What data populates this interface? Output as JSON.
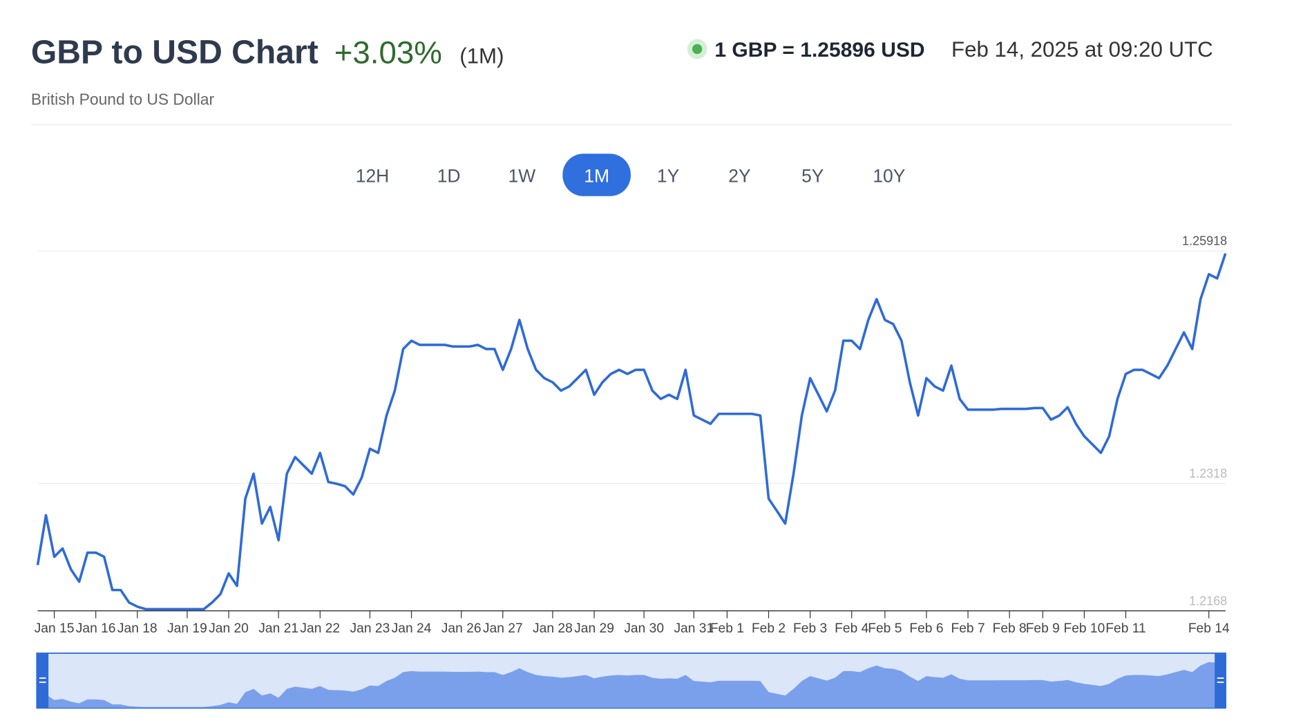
{
  "header": {
    "title": "GBP to USD Chart",
    "change": "+3.03%",
    "period": "(1M)",
    "rate": "1 GBP = 1.25896 USD",
    "timestamp": "Feb 14, 2025 at 09:20 UTC",
    "subtitle": "British Pound to US Dollar"
  },
  "range_buttons": {
    "labels": [
      "12H",
      "1D",
      "1W",
      "1M",
      "1Y",
      "2Y",
      "5Y",
      "10Y"
    ],
    "active": "1M"
  },
  "chart_data": {
    "type": "line",
    "color": "#2f6bd6",
    "ylim": [
      1.2168,
      1.25918
    ],
    "yticks": [
      1.2168,
      1.2318,
      1.25918
    ],
    "grid": true,
    "categories": [
      null,
      null,
      "Jan 15",
      null,
      null,
      null,
      null,
      "Jan 16",
      null,
      null,
      null,
      null,
      "Jan 18",
      null,
      null,
      null,
      null,
      null,
      "Jan 19",
      null,
      null,
      null,
      null,
      "Jan 20",
      null,
      null,
      null,
      null,
      null,
      "Jan 21",
      null,
      null,
      null,
      null,
      "Jan 22",
      null,
      null,
      null,
      null,
      null,
      "Jan 23",
      null,
      null,
      null,
      null,
      "Jan 24",
      null,
      null,
      null,
      null,
      null,
      "Jan 26",
      null,
      null,
      null,
      null,
      "Jan 27",
      null,
      null,
      null,
      null,
      null,
      "Jan 28",
      null,
      null,
      null,
      null,
      "Jan 29",
      null,
      null,
      null,
      null,
      null,
      "Jan 30",
      null,
      null,
      null,
      null,
      null,
      "Jan 31",
      null,
      null,
      null,
      "Feb 1",
      null,
      null,
      null,
      null,
      "Feb 2",
      null,
      null,
      null,
      null,
      "Feb 3",
      null,
      null,
      null,
      null,
      "Feb 4",
      null,
      null,
      null,
      "Feb 5",
      null,
      null,
      null,
      null,
      "Feb 6",
      null,
      null,
      null,
      null,
      "Feb 7",
      null,
      null,
      null,
      null,
      "Feb 8",
      null,
      null,
      null,
      "Feb 9",
      null,
      null,
      null,
      null,
      "Feb 10",
      null,
      null,
      null,
      null,
      "Feb 11",
      null,
      null,
      null,
      null,
      null,
      null,
      null,
      null,
      null,
      "Feb 14",
      null,
      null
    ],
    "values": [
      1.22218,
      1.22806,
      1.22316,
      1.22414,
      1.22169,
      1.22023,
      1.22365,
      1.22365,
      1.22316,
      1.21925,
      1.21925,
      1.21778,
      1.21729,
      1.217,
      1.217,
      1.217,
      1.217,
      1.217,
      1.217,
      1.217,
      1.217,
      1.21778,
      1.21876,
      1.2212,
      1.21974,
      1.23001,
      1.23295,
      1.22708,
      1.22903,
      1.22512,
      1.23295,
      1.23491,
      1.23393,
      1.23295,
      1.2354,
      1.23197,
      1.23177,
      1.23148,
      1.2305,
      1.23246,
      1.23589,
      1.2354,
      1.2398,
      1.24274,
      1.24763,
      1.24861,
      1.24812,
      1.24812,
      1.24812,
      1.24812,
      1.24792,
      1.24792,
      1.24792,
      1.24812,
      1.24763,
      1.24763,
      1.24518,
      1.24763,
      1.25106,
      1.24763,
      1.24518,
      1.2442,
      1.24372,
      1.24274,
      1.24323,
      1.2442,
      1.24518,
      1.24225,
      1.24372,
      1.24469,
      1.24518,
      1.24469,
      1.24518,
      1.24518,
      1.24274,
      1.24176,
      1.24225,
      1.24176,
      1.24518,
      1.2398,
      1.23931,
      1.23882,
      1.24,
      1.24,
      1.24,
      1.24,
      1.24,
      1.2398,
      1.23001,
      1.22855,
      1.22708,
      1.23295,
      1.2398,
      1.2442,
      1.24225,
      1.24029,
      1.24274,
      1.24861,
      1.24861,
      1.24763,
      1.25106,
      1.2535,
      1.25106,
      1.25057,
      1.24861,
      1.24372,
      1.2398,
      1.2442,
      1.24323,
      1.24274,
      1.24567,
      1.24176,
      1.24049,
      1.24049,
      1.24049,
      1.24049,
      1.24058,
      1.24058,
      1.24058,
      1.24058,
      1.24068,
      1.24068,
      1.23931,
      1.2398,
      1.24078,
      1.23882,
      1.23735,
      1.23638,
      1.2354,
      1.23735,
      1.24176,
      1.24469,
      1.24518,
      1.24518,
      1.24469,
      1.2442,
      1.24567,
      1.24763,
      1.24959,
      1.24763,
      1.2535,
      1.25644,
      1.25595,
      1.25889
    ]
  }
}
